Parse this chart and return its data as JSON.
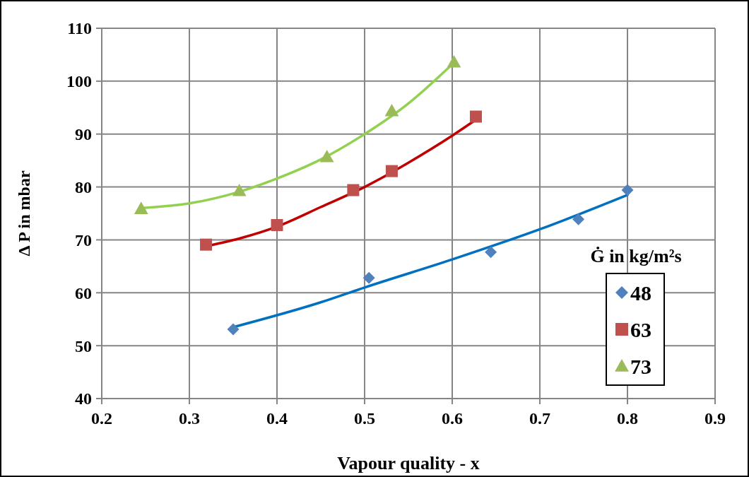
{
  "chart_data": {
    "type": "scatter",
    "xlabel": "Vapour quality - x",
    "ylabel": "Δ P in mbar",
    "legend_title": "Ġ in kg/m²s",
    "xlim": [
      0.2,
      0.9
    ],
    "xticks": [
      0.2,
      0.3,
      0.4,
      0.5,
      0.6,
      0.7,
      0.8,
      0.9
    ],
    "ylim": [
      40,
      110
    ],
    "yticks": [
      40,
      50,
      60,
      70,
      80,
      90,
      100,
      110
    ],
    "grid": true,
    "legend": "right",
    "series": [
      {
        "name": "48",
        "marker": "diamond",
        "color": "#4f81bd",
        "x": [
          0.35,
          0.505,
          0.644,
          0.744,
          0.8
        ],
        "values": [
          53.1,
          62.8,
          67.7,
          73.9,
          79.4
        ]
      },
      {
        "name": "63",
        "marker": "square",
        "color": "#c0504d",
        "x": [
          0.319,
          0.4,
          0.487,
          0.531,
          0.627
        ],
        "values": [
          69.1,
          72.8,
          79.4,
          83.0,
          93.3
        ]
      },
      {
        "name": "73",
        "marker": "triangle",
        "color": "#9bbb59",
        "x": [
          0.245,
          0.357,
          0.457,
          0.531,
          0.602
        ],
        "values": [
          75.9,
          79.3,
          85.7,
          94.4,
          103.6
        ]
      },
      {
        "type": "line",
        "marker": "none",
        "line_style": "solid",
        "color": "#0070c0",
        "x": [
          0.35,
          0.45,
          0.5,
          0.6,
          0.7,
          0.8
        ],
        "values": [
          53.5,
          58.2,
          61.0,
          66.3,
          72.0,
          78.5
        ]
      },
      {
        "type": "line",
        "marker": "none",
        "line_style": "solid",
        "color": "#c00000",
        "x": [
          0.32,
          0.4,
          0.45,
          0.5,
          0.55,
          0.6,
          0.627
        ],
        "values": [
          68.8,
          72.5,
          76.2,
          80.0,
          84.6,
          89.7,
          92.7
        ]
      },
      {
        "type": "line",
        "marker": "none",
        "line_style": "solid",
        "color": "#92d050",
        "x": [
          0.245,
          0.3,
          0.357,
          0.4,
          0.45,
          0.5,
          0.55,
          0.6
        ],
        "values": [
          76.0,
          76.9,
          79.1,
          81.6,
          85.2,
          90.0,
          95.8,
          103.2
        ]
      }
    ]
  }
}
